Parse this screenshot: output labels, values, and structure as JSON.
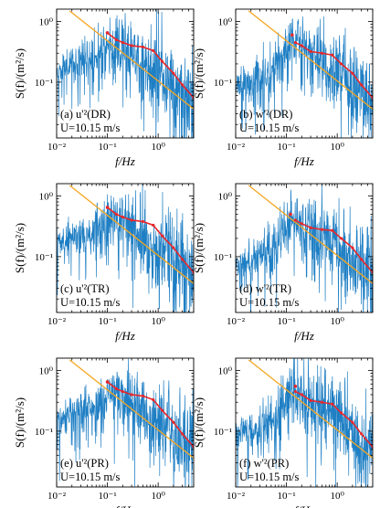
{
  "chart_data": [
    {
      "type": "line",
      "panel": "(a)",
      "component": "u'²",
      "sup_base": "u",
      "sup": "'2",
      "region": "(DR)",
      "wind_speed": "U=10.15 m/s",
      "peak_freq": 0.1,
      "peak_val": 0.65,
      "noise_seed": 11,
      "xlabel": "f/Hz",
      "ylabel": "S(f)/(m²/s)",
      "xscale": "log",
      "yscale": "log",
      "xlim": [
        0.01,
        5
      ],
      "ylim": [
        0.012,
        1.6
      ],
      "xticks": [
        "10⁻²",
        "10⁻¹",
        "10⁰"
      ],
      "yticks": [
        "10⁻¹",
        "10⁰"
      ],
      "reference_line": {
        "slope": -0.667,
        "color": "#f5a623",
        "x": [
          0.018,
          5
        ],
        "y": [
          1.5,
          0.036
        ]
      },
      "series": [
        {
          "kind": "spectrum",
          "color": "#1f7fc4",
          "x": [
            0.01,
            0.02,
            0.05,
            0.1,
            0.15,
            0.2,
            0.3,
            0.5,
            1,
            2,
            5
          ],
          "y": [
            0.15,
            0.2,
            0.25,
            0.35,
            0.4,
            0.38,
            0.3,
            0.22,
            0.14,
            0.09,
            0.05
          ]
        },
        {
          "kind": "bin-averaged",
          "color": "#e8272c",
          "x": [
            0.1,
            0.15,
            0.2,
            0.3,
            0.5,
            0.8,
            1.2,
            2,
            3,
            5
          ],
          "y": [
            0.65,
            0.5,
            0.45,
            0.4,
            0.38,
            0.33,
            0.22,
            0.14,
            0.09,
            0.055
          ]
        }
      ]
    },
    {
      "type": "line",
      "panel": "(b)",
      "component": "w'²",
      "sup_base": "w",
      "sup": "'2",
      "region": "(DR)",
      "wind_speed": "U=10.15 m/s",
      "peak_freq": 0.13,
      "peak_val": 0.6,
      "noise_seed": 23,
      "xlabel": "f/Hz",
      "ylabel": "S(f)/(m²/s)",
      "xscale": "log",
      "yscale": "log",
      "xlim": [
        0.01,
        5
      ],
      "ylim": [
        0.012,
        1.6
      ],
      "xticks": [
        "10⁻²",
        "10⁻¹",
        "10⁰"
      ],
      "yticks": [
        "10⁻¹",
        "10⁰"
      ],
      "reference_line": {
        "slope": -0.667,
        "color": "#f5a623",
        "x": [
          0.018,
          5
        ],
        "y": [
          1.5,
          0.036
        ]
      },
      "series": [
        {
          "kind": "spectrum",
          "color": "#1f7fc4",
          "x": [
            0.01,
            0.02,
            0.05,
            0.1,
            0.13,
            0.2,
            0.3,
            0.5,
            1,
            2,
            5
          ],
          "y": [
            0.08,
            0.1,
            0.15,
            0.35,
            0.55,
            0.35,
            0.3,
            0.22,
            0.14,
            0.09,
            0.05
          ]
        },
        {
          "kind": "bin-averaged",
          "color": "#e8272c",
          "x": [
            0.15,
            0.2,
            0.3,
            0.5,
            0.8,
            1.2,
            2,
            3,
            5
          ],
          "y": [
            0.45,
            0.4,
            0.32,
            0.3,
            0.28,
            0.2,
            0.14,
            0.09,
            0.055
          ]
        }
      ]
    },
    {
      "type": "line",
      "panel": "(c)",
      "component": "u'²",
      "sup_base": "u",
      "sup": "'2",
      "region": "(TR)",
      "wind_speed": "U=10.15 m/s",
      "peak_freq": 0.1,
      "peak_val": 0.65,
      "noise_seed": 37,
      "xlabel": "f/Hz",
      "ylabel": "S(f)/(m²/s)",
      "xscale": "log",
      "yscale": "log",
      "xlim": [
        0.01,
        5
      ],
      "ylim": [
        0.012,
        1.6
      ],
      "xticks": [
        "10⁻²",
        "10⁻¹",
        "10⁰"
      ],
      "yticks": [
        "10⁻¹",
        "10⁰"
      ],
      "reference_line": {
        "slope": -0.667,
        "color": "#f5a623",
        "x": [
          0.018,
          5
        ],
        "y": [
          1.5,
          0.036
        ]
      },
      "series": [
        {
          "kind": "spectrum",
          "color": "#1f7fc4",
          "x": [
            0.01,
            0.02,
            0.05,
            0.1,
            0.15,
            0.2,
            0.3,
            0.5,
            1,
            2,
            5
          ],
          "y": [
            0.15,
            0.2,
            0.25,
            0.35,
            0.4,
            0.38,
            0.3,
            0.22,
            0.14,
            0.09,
            0.05
          ]
        },
        {
          "kind": "bin-averaged",
          "color": "#e8272c",
          "x": [
            0.1,
            0.15,
            0.2,
            0.3,
            0.5,
            0.8,
            1.2,
            2,
            3,
            5
          ],
          "y": [
            0.65,
            0.5,
            0.45,
            0.4,
            0.38,
            0.33,
            0.22,
            0.14,
            0.09,
            0.055
          ]
        }
      ]
    },
    {
      "type": "line",
      "panel": "(d)",
      "component": "w'²",
      "sup_base": "w",
      "sup": "'2",
      "region": "(TR)",
      "wind_speed": "U=10.15 m/s",
      "peak_freq": 0.12,
      "peak_val": 0.5,
      "noise_seed": 41,
      "xlabel": "f/Hz",
      "ylabel": "S(f)/(m²/s)",
      "xscale": "log",
      "yscale": "log",
      "xlim": [
        0.01,
        5
      ],
      "ylim": [
        0.012,
        1.6
      ],
      "xticks": [
        "10⁻²",
        "10⁻¹",
        "10⁰"
      ],
      "yticks": [
        "10⁻¹",
        "10⁰"
      ],
      "reference_line": {
        "slope": -0.667,
        "color": "#f5a623",
        "x": [
          0.018,
          5
        ],
        "y": [
          1.5,
          0.036
        ]
      },
      "series": [
        {
          "kind": "spectrum",
          "color": "#1f7fc4",
          "x": [
            0.01,
            0.02,
            0.05,
            0.1,
            0.12,
            0.2,
            0.3,
            0.5,
            1,
            2,
            5
          ],
          "y": [
            0.07,
            0.09,
            0.13,
            0.3,
            0.45,
            0.35,
            0.3,
            0.22,
            0.14,
            0.09,
            0.05
          ]
        },
        {
          "kind": "bin-averaged",
          "color": "#e8272c",
          "x": [
            0.15,
            0.2,
            0.3,
            0.5,
            0.8,
            1.2,
            2,
            3,
            5
          ],
          "y": [
            0.4,
            0.35,
            0.3,
            0.28,
            0.27,
            0.2,
            0.14,
            0.09,
            0.055
          ]
        }
      ]
    },
    {
      "type": "line",
      "panel": "(e)",
      "component": "u'²",
      "sup_base": "u",
      "sup": "'2",
      "region": "(PR)",
      "wind_speed": "U=10.15 m/s",
      "peak_freq": 0.1,
      "peak_val": 0.65,
      "noise_seed": 53,
      "xlabel": "f/Hz",
      "ylabel": "S(f)/(m²/s)",
      "xscale": "log",
      "yscale": "log",
      "xlim": [
        0.01,
        5
      ],
      "ylim": [
        0.012,
        1.6
      ],
      "xticks": [
        "10⁻²",
        "10⁻¹",
        "10⁰"
      ],
      "yticks": [
        "10⁻¹",
        "10⁰"
      ],
      "reference_line": {
        "slope": -0.667,
        "color": "#f5a623",
        "x": [
          0.018,
          5
        ],
        "y": [
          1.5,
          0.036
        ]
      },
      "series": [
        {
          "kind": "spectrum",
          "color": "#1f7fc4",
          "x": [
            0.01,
            0.02,
            0.05,
            0.1,
            0.15,
            0.2,
            0.3,
            0.5,
            1,
            2,
            5
          ],
          "y": [
            0.15,
            0.2,
            0.25,
            0.35,
            0.4,
            0.38,
            0.3,
            0.22,
            0.14,
            0.09,
            0.05
          ]
        },
        {
          "kind": "bin-averaged",
          "color": "#e8272c",
          "x": [
            0.1,
            0.15,
            0.2,
            0.3,
            0.5,
            0.8,
            1.2,
            2,
            3,
            5
          ],
          "y": [
            0.65,
            0.5,
            0.45,
            0.4,
            0.38,
            0.33,
            0.22,
            0.14,
            0.09,
            0.055
          ]
        }
      ]
    },
    {
      "type": "line",
      "panel": "(f)",
      "component": "w'²",
      "sup_base": "w",
      "sup": "'2",
      "region": "(PR)",
      "wind_speed": "U=10.15 m/s",
      "peak_freq": 0.15,
      "peak_val": 0.55,
      "noise_seed": 67,
      "xlabel": "f/Hz",
      "ylabel": "S(f)/(m²/s)",
      "xscale": "log",
      "yscale": "log",
      "xlim": [
        0.01,
        5
      ],
      "ylim": [
        0.012,
        1.6
      ],
      "xticks": [
        "10⁻²",
        "10⁻¹",
        "10⁰"
      ],
      "yticks": [
        "10⁻¹",
        "10⁰"
      ],
      "reference_line": {
        "slope": -0.667,
        "color": "#f5a623",
        "x": [
          0.018,
          5
        ],
        "y": [
          1.5,
          0.036
        ]
      },
      "series": [
        {
          "kind": "spectrum",
          "color": "#1f7fc4",
          "x": [
            0.01,
            0.02,
            0.05,
            0.1,
            0.15,
            0.2,
            0.3,
            0.5,
            1,
            2,
            5
          ],
          "y": [
            0.08,
            0.1,
            0.14,
            0.3,
            0.5,
            0.35,
            0.3,
            0.22,
            0.14,
            0.09,
            0.05
          ]
        },
        {
          "kind": "bin-averaged",
          "color": "#e8272c",
          "x": [
            0.15,
            0.2,
            0.3,
            0.5,
            0.8,
            1.2,
            2,
            3,
            5
          ],
          "y": [
            0.45,
            0.4,
            0.32,
            0.3,
            0.28,
            0.2,
            0.14,
            0.09,
            0.055
          ]
        }
      ]
    }
  ]
}
